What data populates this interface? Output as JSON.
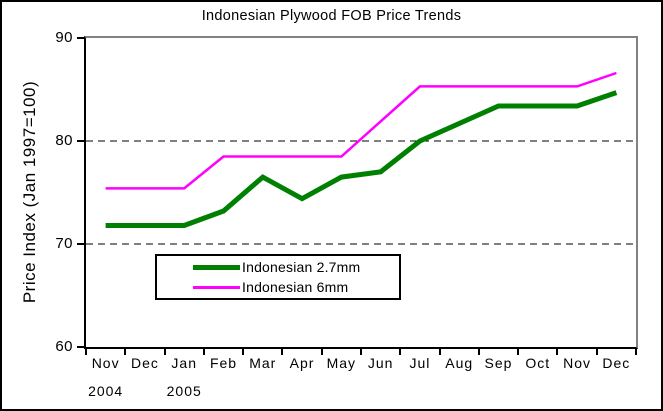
{
  "colors": {
    "background": "#ffffff",
    "frame_border": "#000000",
    "plot_border_gray": "#828282",
    "axis_black": "#000000",
    "series_green": "#008000",
    "series_magenta": "#ff00ff"
  },
  "chart_data": {
    "type": "line",
    "title": "Indonesian Plywood FOB Price Trends",
    "xlabel": "",
    "ylabel": "Price Index (Jan 1997=100)",
    "ylim": [
      60,
      90
    ],
    "yticks": [
      60,
      70,
      80,
      90
    ],
    "gridlines_at": [
      70,
      80
    ],
    "grid": "horizontal-dashed",
    "legend_position": "inside-bottom-left",
    "categories": [
      "Nov",
      "Dec",
      "Jan",
      "Feb",
      "Mar",
      "Apr",
      "May",
      "Jun",
      "Jul",
      "Aug",
      "Sep",
      "Oct",
      "Nov",
      "Dec"
    ],
    "year_labels": [
      {
        "index": 0,
        "label": "2004"
      },
      {
        "index": 2,
        "label": "2005"
      }
    ],
    "series": [
      {
        "name": "Indonesian 2.7mm",
        "color": "#008000",
        "width": 5,
        "values": [
          71.8,
          71.8,
          71.8,
          73.2,
          76.5,
          74.4,
          76.5,
          77.0,
          80.0,
          81.7,
          83.4,
          83.4,
          83.4,
          84.7
        ]
      },
      {
        "name": "Indonesian 6mm",
        "color": "#ff00ff",
        "width": 2.5,
        "values": [
          75.4,
          75.4,
          75.4,
          78.5,
          78.5,
          78.5,
          78.5,
          81.9,
          85.3,
          85.3,
          85.3,
          85.3,
          85.3,
          86.6
        ]
      }
    ]
  }
}
